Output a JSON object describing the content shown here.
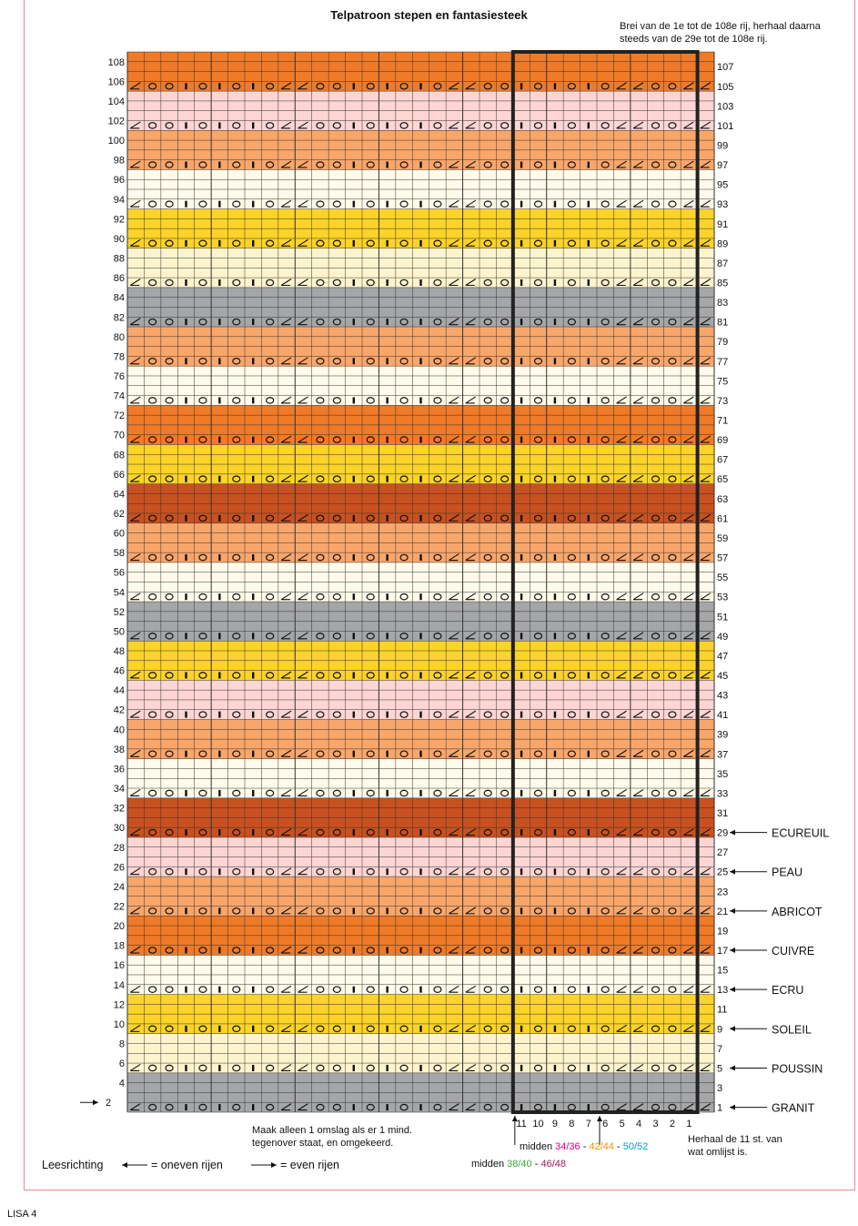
{
  "title": "Telpatroon stepen en fantasiesteek",
  "instruction_top": [
    "Brei van de 1e tot de 108e rij, herhaal daarna",
    "steeds van de 29e tot de 108e rij."
  ],
  "colors": {
    "granit": "#a4a6a8",
    "poussin": "#fdf4cd",
    "soleil": "#fbd329",
    "ecru": "#fffae9",
    "cuivre": "#f07a27",
    "abricot": "#f9a66b",
    "peau": "#fdd5d3",
    "ecureuil": "#c8511f"
  },
  "color_bands": [
    {
      "rows": "1-4",
      "color": "granit"
    },
    {
      "rows": "5-8",
      "color": "poussin"
    },
    {
      "rows": "9-12",
      "color": "soleil"
    },
    {
      "rows": "13-16",
      "color": "ecru"
    },
    {
      "rows": "17-20",
      "color": "cuivre"
    },
    {
      "rows": "21-24",
      "color": "abricot"
    },
    {
      "rows": "25-28",
      "color": "peau"
    },
    {
      "rows": "29-32",
      "color": "ecureuil"
    },
    {
      "rows": "33-36",
      "color": "ecru"
    },
    {
      "rows": "37-40",
      "color": "abricot"
    },
    {
      "rows": "41-44",
      "color": "peau"
    },
    {
      "rows": "45-48",
      "color": "soleil"
    },
    {
      "rows": "49-52",
      "color": "granit"
    },
    {
      "rows": "53-56",
      "color": "ecru"
    },
    {
      "rows": "57-60",
      "color": "abricot"
    },
    {
      "rows": "61-64",
      "color": "ecureuil"
    },
    {
      "rows": "65-68",
      "color": "soleil"
    },
    {
      "rows": "69-72",
      "color": "cuivre"
    },
    {
      "rows": "73-76",
      "color": "ecru"
    },
    {
      "rows": "77-80",
      "color": "abricot"
    },
    {
      "rows": "81-84",
      "color": "granit"
    },
    {
      "rows": "85-88",
      "color": "poussin"
    },
    {
      "rows": "89-92",
      "color": "soleil"
    },
    {
      "rows": "93-96",
      "color": "ecru"
    },
    {
      "rows": "97-100",
      "color": "abricot"
    },
    {
      "rows": "101-104",
      "color": "peau"
    },
    {
      "rows": "105-108",
      "color": "cuivre"
    }
  ],
  "rows_total": 108,
  "stitches_total": 35,
  "pattern_row_symbols": [
    "k2tog",
    "yo",
    "o",
    "bar",
    "o",
    "bar",
    "o",
    "bar",
    "o",
    "k2tog",
    "k2tog",
    "yo",
    "o",
    "bar",
    "o",
    "bar",
    "o",
    "bar",
    "o",
    "k2tog",
    "k2tog",
    "yo",
    "o",
    "bar",
    "o",
    "bar",
    "o",
    "bar",
    "o",
    "k2tog",
    "k2tog",
    "yo",
    "o",
    "k2tog",
    "k2tog"
  ],
  "color_legend": [
    {
      "row": "29",
      "name": "ECUREUIL"
    },
    {
      "row": "25",
      "name": "PEAU"
    },
    {
      "row": "21",
      "name": "ABRICOT"
    },
    {
      "row": "17",
      "name": "CUIVRE"
    },
    {
      "row": "13",
      "name": "ECRU"
    },
    {
      "row": "9",
      "name": "SOLEIL"
    },
    {
      "row": "5",
      "name": "POUSSIN"
    },
    {
      "row": "1",
      "name": "GRANIT"
    }
  ],
  "repeat_numbers": [
    "11",
    "10",
    "9",
    "8",
    "7",
    "6",
    "5",
    "4",
    "3",
    "2",
    "1"
  ],
  "row2_arrow_label": "2",
  "note_omslag": [
    "Maak alleen 1 omslag als er 1 mind.",
    "tegenover staat, en omgekeerd."
  ],
  "note_repeat": [
    "Herhaal de 11 st. van",
    "wat omlijst is."
  ],
  "midden_a": {
    "prefix": "midden ",
    "s1": "34/36",
    "d1": " - ",
    "s2": "42/44",
    "d2": " - ",
    "s3": "50/52"
  },
  "midden_b": {
    "prefix": "midden ",
    "s1": "38/40",
    "d1": " - ",
    "s2": "46/48"
  },
  "size_colors": {
    "s3436": "#e4007c",
    "s4244": "#f39200",
    "s5052": "#00a0c6",
    "s3840": "#3aaa35",
    "s4648": "#a3195b"
  },
  "leesrichting": "Leesrichting",
  "oneven": "= oneven rijen",
  "even": "= even rijen",
  "footer": "LISA 4"
}
